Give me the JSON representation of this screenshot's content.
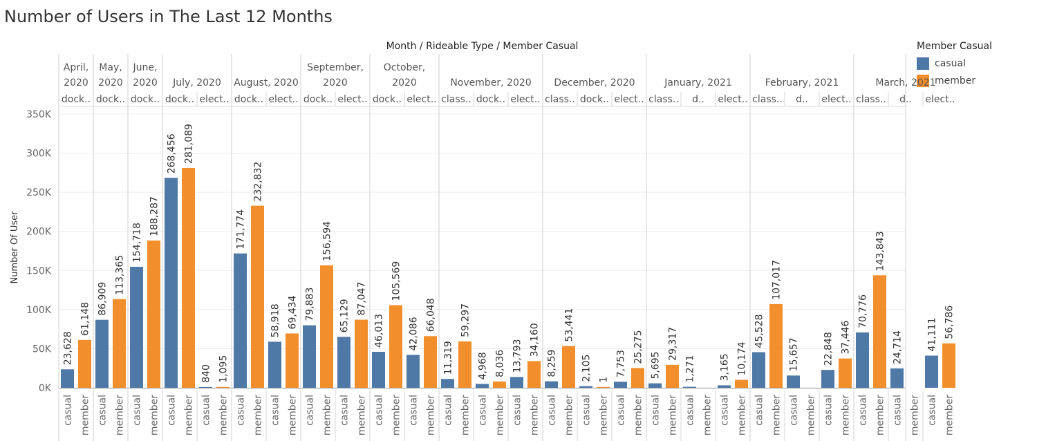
{
  "title": "Number of Users in The Last 12 Months",
  "header_title": "Month / Rideable Type / Member Casual",
  "legend": {
    "title": "Member Casual",
    "items": [
      {
        "label": "casual",
        "color": "#4e79a7"
      },
      {
        "label": "member",
        "color": "#f28e2b"
      }
    ]
  },
  "chart_data": {
    "type": "bar",
    "ylabel": "Number Of User",
    "ylim": [
      0,
      350000
    ],
    "yticks": [
      0,
      50000,
      100000,
      150000,
      200000,
      250000,
      300000,
      350000
    ],
    "ytick_labels": [
      "0K",
      "50K",
      "100K",
      "150K",
      "200K",
      "250K",
      "300K",
      "350K"
    ],
    "grid": true,
    "legend_position": "right",
    "months": [
      {
        "label": [
          "April,",
          "2020"
        ],
        "types": [
          {
            "label": "dock..",
            "casual": 23628,
            "member": 61148,
            "casual_label": "23,628",
            "member_label": "61,148"
          }
        ]
      },
      {
        "label": [
          "May,",
          "2020"
        ],
        "types": [
          {
            "label": "dock..",
            "casual": 86909,
            "member": 113365,
            "casual_label": "86,909",
            "member_label": "113,365"
          }
        ]
      },
      {
        "label": [
          "June,",
          "2020"
        ],
        "types": [
          {
            "label": "dock..",
            "casual": 154718,
            "member": 188287,
            "casual_label": "154,718",
            "member_label": "188,287"
          }
        ]
      },
      {
        "label": [
          "July, 2020"
        ],
        "types": [
          {
            "label": "dock..",
            "casual": 268456,
            "member": 281089,
            "casual_label": "268,456",
            "member_label": "281,089"
          },
          {
            "label": "elect..",
            "casual": 840,
            "member": 1095,
            "casual_label": "840",
            "member_label": "1,095"
          }
        ]
      },
      {
        "label": [
          "August, 2020"
        ],
        "types": [
          {
            "label": "dock..",
            "casual": 171774,
            "member": 232832,
            "casual_label": "171,774",
            "member_label": "232,832"
          },
          {
            "label": "elect..",
            "casual": 58918,
            "member": 69434,
            "casual_label": "58,918",
            "member_label": "69,434"
          }
        ]
      },
      {
        "label": [
          "September,",
          "2020"
        ],
        "types": [
          {
            "label": "dock..",
            "casual": 79883,
            "member": 156594,
            "casual_label": "79,883",
            "member_label": "156,594"
          },
          {
            "label": "elect..",
            "casual": 65129,
            "member": 87047,
            "casual_label": "65,129",
            "member_label": "87,047"
          }
        ]
      },
      {
        "label": [
          "October,",
          "2020"
        ],
        "types": [
          {
            "label": "dock..",
            "casual": 46013,
            "member": 105569,
            "casual_label": "46,013",
            "member_label": "105,569"
          },
          {
            "label": "elect..",
            "casual": 42086,
            "member": 66048,
            "casual_label": "42,086",
            "member_label": "66,048"
          }
        ]
      },
      {
        "label": [
          "November, 2020"
        ],
        "types": [
          {
            "label": "class..",
            "casual": 11319,
            "member": 59297,
            "casual_label": "11,319",
            "member_label": "59,297"
          },
          {
            "label": "dock..",
            "casual": 4968,
            "member": 8036,
            "casual_label": "4,968",
            "member_label": "8,036"
          },
          {
            "label": "elect..",
            "casual": 13793,
            "member": 34160,
            "casual_label": "13,793",
            "member_label": "34,160"
          }
        ]
      },
      {
        "label": [
          "December, 2020"
        ],
        "types": [
          {
            "label": "class..",
            "casual": 8259,
            "member": 53441,
            "casual_label": "8,259",
            "member_label": "53,441"
          },
          {
            "label": "dock..",
            "casual": 2105,
            "member": 1,
            "casual_label": "2,105",
            "member_label": "1"
          },
          {
            "label": "elect..",
            "casual": 7753,
            "member": 25275,
            "casual_label": "7,753",
            "member_label": "25,275"
          }
        ]
      },
      {
        "label": [
          "January, 2021"
        ],
        "types": [
          {
            "label": "class..",
            "casual": 5695,
            "member": 29317,
            "casual_label": "5,695",
            "member_label": "29,317"
          },
          {
            "label": "d..",
            "casual": 1271,
            "member": null,
            "casual_label": "1,271",
            "member_label": null
          },
          {
            "label": "elect..",
            "casual": 3165,
            "member": 10174,
            "casual_label": "3,165",
            "member_label": "10,174"
          }
        ]
      },
      {
        "label": [
          "February, 2021"
        ],
        "types": [
          {
            "label": "class..",
            "casual": 45528,
            "member": 107017,
            "casual_label": "45,528",
            "member_label": "107,017"
          },
          {
            "label": "d..",
            "casual": 15657,
            "member": null,
            "casual_label": "15,657",
            "member_label": null
          },
          {
            "label": "elect..",
            "casual": 22848,
            "member": 37446,
            "casual_label": "22,848",
            "member_label": "37,446"
          }
        ]
      },
      {
        "label": [
          "March, 2021"
        ],
        "types": [
          {
            "label": "class..",
            "casual": 70776,
            "member": 143843,
            "casual_label": "70,776",
            "member_label": "143,843"
          },
          {
            "label": "d..",
            "casual": 24714,
            "member": null,
            "casual_label": "24,714",
            "member_label": null
          },
          {
            "label": "elect..",
            "casual": 41111,
            "member": 56786,
            "casual_label": "41,111",
            "member_label": "56,786"
          }
        ]
      }
    ]
  }
}
